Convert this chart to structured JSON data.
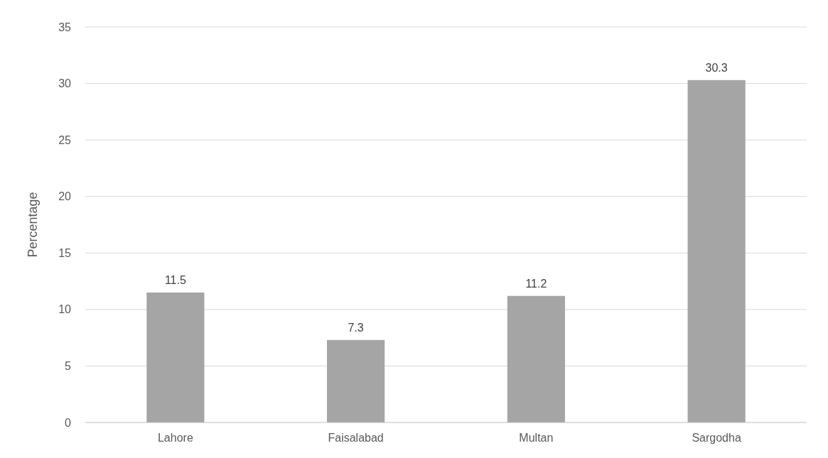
{
  "chart_data": {
    "type": "bar",
    "ylabel": "Percentage",
    "categories": [
      "Lahore",
      "Faisalabad",
      "Multan",
      "Sargodha"
    ],
    "values": [
      11.5,
      7.3,
      11.2,
      30.3
    ],
    "color": "#a5a5a5",
    "ylim": [
      0,
      35
    ],
    "yticks": [
      0,
      5,
      10,
      15,
      20,
      25,
      30,
      35
    ],
    "grid": "y",
    "data_labels": true
  }
}
